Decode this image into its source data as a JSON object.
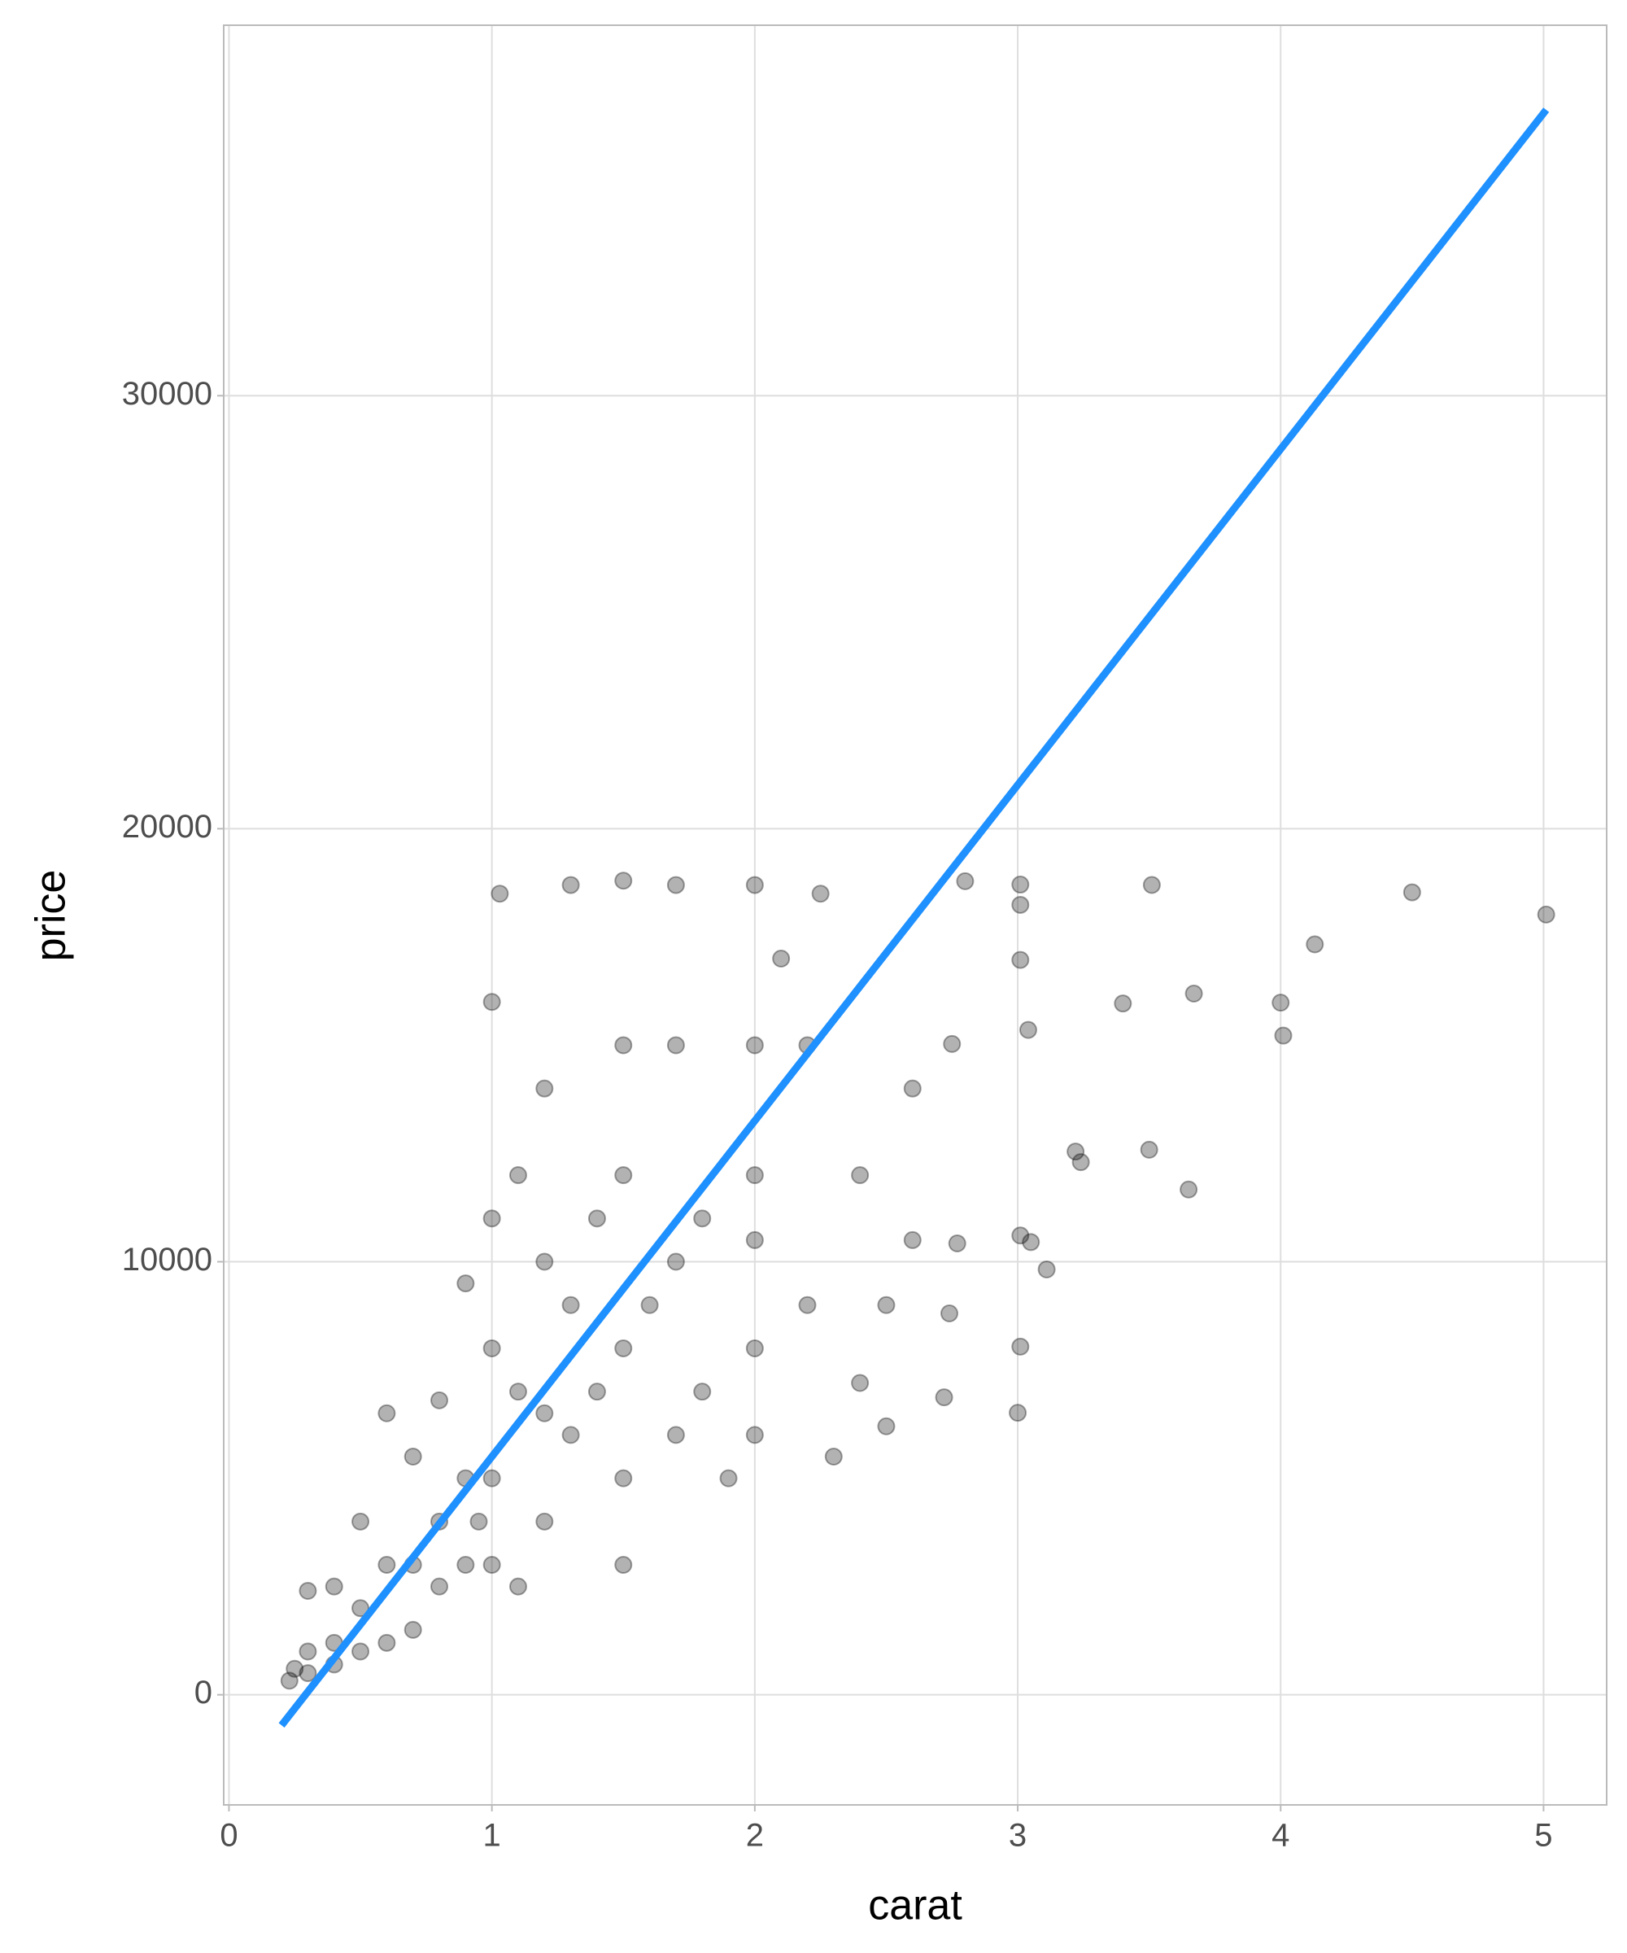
{
  "chart_data": {
    "type": "scatter",
    "x_label": "carat",
    "y_label": "price",
    "x": [
      5.01,
      4.5,
      4.13,
      4.01,
      4.0,
      3.67,
      3.65,
      3.51,
      3.5,
      3.4,
      3.24,
      3.22,
      3.11,
      3.05,
      3.04,
      3.01,
      3.01,
      3.01,
      3.01,
      3.0,
      3.01,
      2.8,
      2.77,
      2.74,
      2.72,
      2.75,
      2.6,
      2.5,
      2.5,
      2.25,
      2.4,
      2.2,
      2.1,
      2.0,
      2.0,
      2.0,
      2.0,
      2.0,
      2.0,
      2.3,
      1.9,
      1.7,
      1.7,
      1.7,
      1.7,
      1.5,
      1.5,
      1.5,
      1.5,
      1.5,
      1.5,
      1.2,
      1.1,
      1.0,
      1.0,
      1.0,
      1.0,
      1.03,
      1.0,
      1.2,
      1.3,
      1.3,
      1.3,
      1.2,
      1.1,
      0.9,
      0.9,
      0.9,
      0.8,
      0.8,
      0.8,
      0.7,
      0.7,
      0.7,
      0.6,
      0.6,
      0.6,
      0.5,
      0.5,
      0.5,
      0.4,
      0.4,
      0.4,
      0.3,
      0.3,
      0.3,
      0.23,
      0.25,
      1.8,
      1.8,
      1.6,
      1.4,
      1.4,
      2.2,
      2.4,
      2.6,
      1.1,
      1.2,
      0.95
    ],
    "values": [
      18018,
      18531,
      17329,
      15223,
      15984,
      16193,
      11668,
      18701,
      12587,
      15964,
      12300,
      12545,
      9823,
      10453,
      15354,
      18710,
      18242,
      16970,
      10607,
      6512,
      8040,
      18788,
      10424,
      8807,
      6870,
      15030,
      14000,
      6200,
      9000,
      18500,
      12000,
      15000,
      17000,
      18700,
      15000,
      12000,
      10500,
      8000,
      6000,
      5500,
      5000,
      18700,
      15000,
      10000,
      6000,
      18800,
      15000,
      12000,
      8000,
      5000,
      3000,
      10000,
      12000,
      11000,
      8000,
      5000,
      3000,
      18500,
      16000,
      14000,
      18700,
      9000,
      6000,
      4000,
      2500,
      9500,
      5000,
      3000,
      6800,
      4000,
      2500,
      5500,
      3000,
      1500,
      6500,
      3000,
      1200,
      4000,
      2000,
      1000,
      2500,
      1200,
      700,
      2400,
      1000,
      500,
      326,
      600,
      7000,
      11000,
      9000,
      7000,
      11000,
      9000,
      7200,
      10500,
      7000,
      6500,
      4000
    ],
    "color": "#000000",
    "trend": {
      "x": [
        0.2,
        5.01
      ],
      "values": [
        -705,
        36600
      ],
      "color": "#1e90ff"
    },
    "xlim": [
      -0.02,
      5.24
    ],
    "ylim": [
      -2543,
      38555
    ],
    "xticks": [
      0,
      1,
      2,
      3,
      4,
      5
    ],
    "yticks": [
      0,
      10000,
      20000,
      30000
    ],
    "grid": true
  }
}
